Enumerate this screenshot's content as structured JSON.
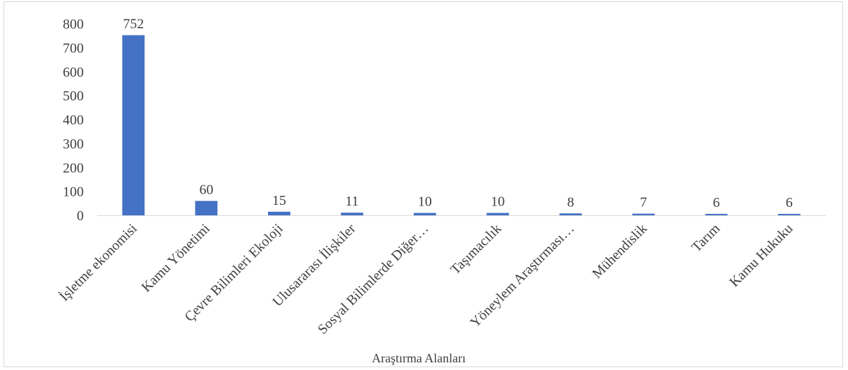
{
  "chart_data": {
    "type": "bar",
    "categories": [
      "İşletme ekonomisi",
      "Kamu Yönetimi",
      "Çevre Bilimleri Ekoloji",
      "Ulusararası İlişkiler",
      "Sosyal Bilimlerde Diğer…",
      "Taşımacılık",
      "Yöneylem Araştırması…",
      "Mühendislik",
      "Tarım",
      "Kamu Hukuku"
    ],
    "values": [
      752,
      60,
      15,
      11,
      10,
      10,
      8,
      7,
      6,
      6
    ],
    "data_labels": [
      "752",
      "60",
      "15",
      "11",
      "10",
      "10",
      "8",
      "7",
      "6",
      "6"
    ],
    "xlabel": "Araştırma Alanları",
    "ylabel": "",
    "ylim": [
      0,
      800
    ],
    "yticks": [
      0,
      100,
      200,
      300,
      400,
      500,
      600,
      700,
      800
    ],
    "grid": false,
    "legend": "none",
    "bar_color": "#4472c4"
  }
}
